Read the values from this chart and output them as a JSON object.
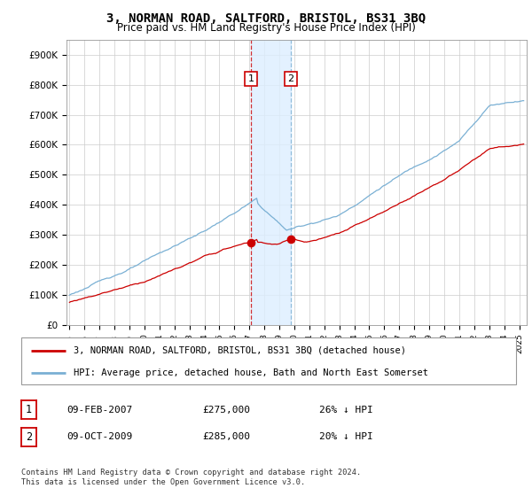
{
  "title": "3, NORMAN ROAD, SALTFORD, BRISTOL, BS31 3BQ",
  "subtitle": "Price paid vs. HM Land Registry's House Price Index (HPI)",
  "title_fontsize": 10,
  "subtitle_fontsize": 8.5,
  "ylabel_ticks": [
    "£0",
    "£100K",
    "£200K",
    "£300K",
    "£400K",
    "£500K",
    "£600K",
    "£700K",
    "£800K",
    "£900K"
  ],
  "ytick_values": [
    0,
    100000,
    200000,
    300000,
    400000,
    500000,
    600000,
    700000,
    800000,
    900000
  ],
  "ylim": [
    0,
    950000
  ],
  "xlim_start": 1994.8,
  "xlim_end": 2025.5,
  "hpi_color": "#7ab0d4",
  "price_color": "#cc0000",
  "sale1_date": 2007.1,
  "sale1_price": 275000,
  "sale1_label": "1",
  "sale2_date": 2009.77,
  "sale2_price": 285000,
  "sale2_label": "2",
  "legend_line1": "3, NORMAN ROAD, SALTFORD, BRISTOL, BS31 3BQ (detached house)",
  "legend_line2": "HPI: Average price, detached house, Bath and North East Somerset",
  "footer": "Contains HM Land Registry data © Crown copyright and database right 2024.\nThis data is licensed under the Open Government Licence v3.0.",
  "background_color": "#ffffff",
  "grid_color": "#cccccc",
  "shade_color": "#ddeeff"
}
